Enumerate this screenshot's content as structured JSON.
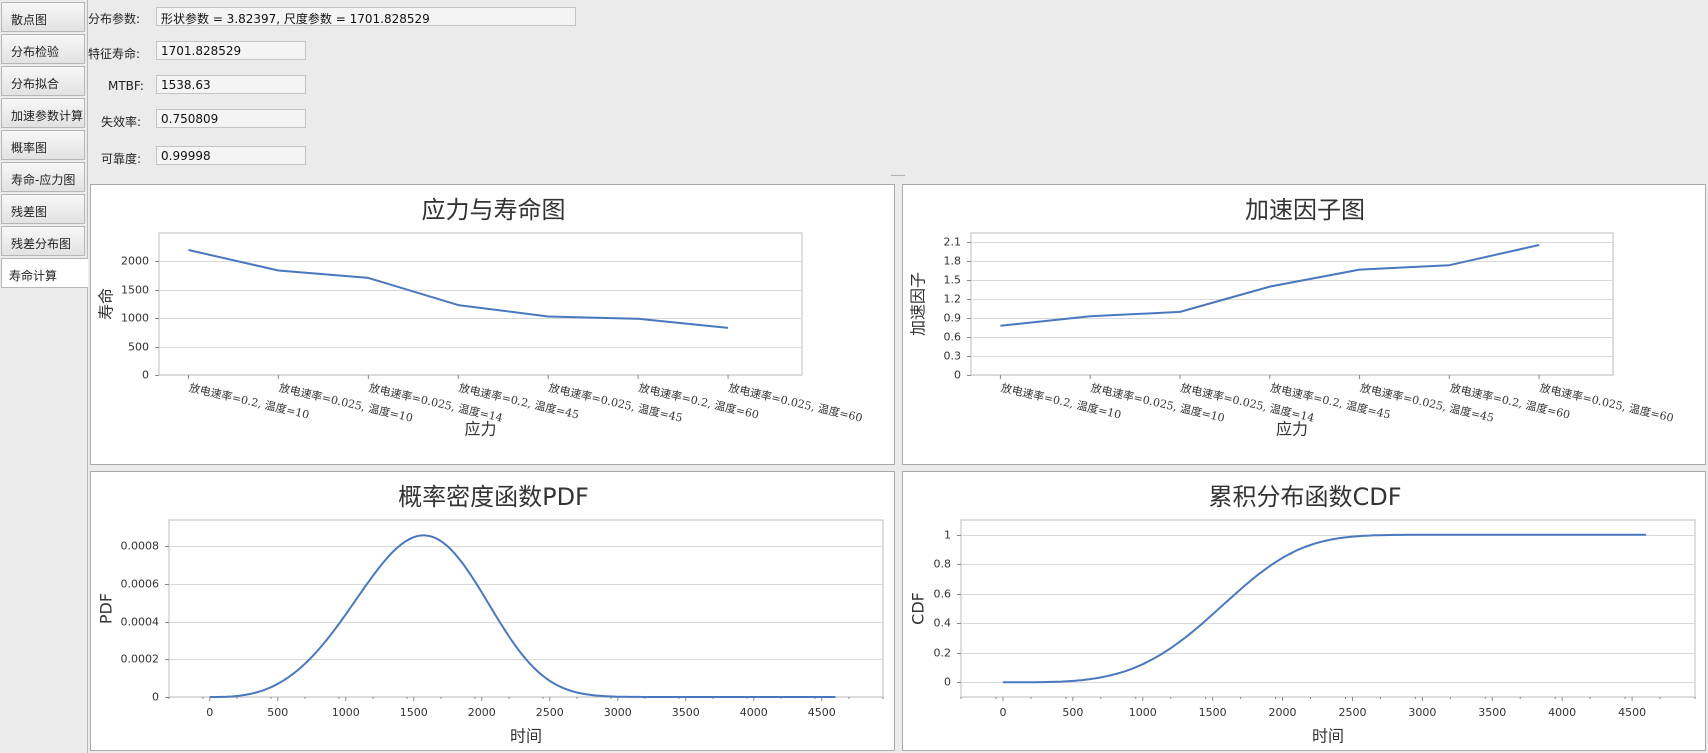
{
  "sidebar": {
    "tabs": [
      {
        "label": "散点图"
      },
      {
        "label": "分布检验"
      },
      {
        "label": "分布拟合"
      },
      {
        "label": "加速参数计算"
      },
      {
        "label": "概率图"
      },
      {
        "label": "寿命-应力图"
      },
      {
        "label": "残差图"
      },
      {
        "label": "残差分布图"
      },
      {
        "label": "寿命计算",
        "active": true
      }
    ]
  },
  "params": {
    "dist_label": "分布参数:",
    "dist_value": "形状参数 = 3.82397, 尺度参数 = 1701.828529",
    "char_life_label": "特征寿命:",
    "char_life_value": "1701.828529",
    "mtbf_label": "MTBF:",
    "mtbf_value": "1538.63",
    "failure_rate_label": "失效率:",
    "failure_rate_value": "0.750809",
    "reliability_label": "可靠度:",
    "reliability_value": "0.99998"
  },
  "colors": {
    "line": "#4a78c0",
    "grid": "#d9d9d9",
    "axis": "#888888"
  },
  "chart_data": [
    {
      "type": "line",
      "title": "应力与寿命图",
      "xlabel": "应力",
      "ylabel": "寿命",
      "categories": [
        "放电速率=0.2, 温度=10",
        "放电速率=0.025, 温度=10",
        "放电速率=0.025, 温度=14",
        "放电速率=0.2, 温度=45",
        "放电速率=0.025, 温度=45",
        "放电速率=0.2, 温度=60",
        "放电速率=0.025, 温度=60"
      ],
      "values": [
        2200,
        1840,
        1710,
        1230,
        1030,
        990,
        830
      ],
      "ylim": [
        0,
        2500
      ],
      "yticks": [
        0,
        500,
        1000,
        1500,
        2000
      ],
      "grid": true
    },
    {
      "type": "line",
      "title": "加速因子图",
      "xlabel": "应力",
      "ylabel": "加速因子",
      "categories": [
        "放电速率=0.2, 温度=10",
        "放电速率=0.025, 温度=10",
        "放电速率=0.025, 温度=14",
        "放电速率=0.2, 温度=45",
        "放电速率=0.025, 温度=45",
        "放电速率=0.2, 温度=60",
        "放电速率=0.025, 温度=60"
      ],
      "values": [
        0.78,
        0.93,
        1.0,
        1.4,
        1.67,
        1.74,
        2.06
      ],
      "ylim": [
        0,
        2.25
      ],
      "yticks": [
        0,
        0.3,
        0.6,
        0.9,
        1.2,
        1.5,
        1.8,
        2.1
      ],
      "grid": true
    },
    {
      "type": "line",
      "title": "概率密度函数PDF",
      "xlabel": "时间",
      "ylabel": "PDF",
      "curve": "weibull_pdf",
      "shape": 3.82397,
      "scale": 1701.828529,
      "xrange": [
        0,
        4600
      ],
      "xlim": [
        -300,
        4950
      ],
      "xticks": [
        0,
        500,
        1000,
        1500,
        2000,
        2500,
        3000,
        3500,
        4000,
        4500
      ],
      "ylim": [
        0,
        0.00094
      ],
      "yticks": [
        0,
        0.0002,
        0.0004,
        0.0006,
        0.0008
      ],
      "grid": true
    },
    {
      "type": "line",
      "title": "累积分布函数CDF",
      "xlabel": "时间",
      "ylabel": "CDF",
      "curve": "weibull_cdf",
      "shape": 3.82397,
      "scale": 1701.828529,
      "xrange": [
        0,
        4600
      ],
      "xlim": [
        -300,
        4950
      ],
      "xticks": [
        0,
        500,
        1000,
        1500,
        2000,
        2500,
        3000,
        3500,
        4000,
        4500
      ],
      "ylim": [
        -0.1,
        1.1
      ],
      "yticks": [
        0,
        0.2,
        0.4,
        0.6,
        0.8,
        1
      ],
      "grid": true
    }
  ]
}
